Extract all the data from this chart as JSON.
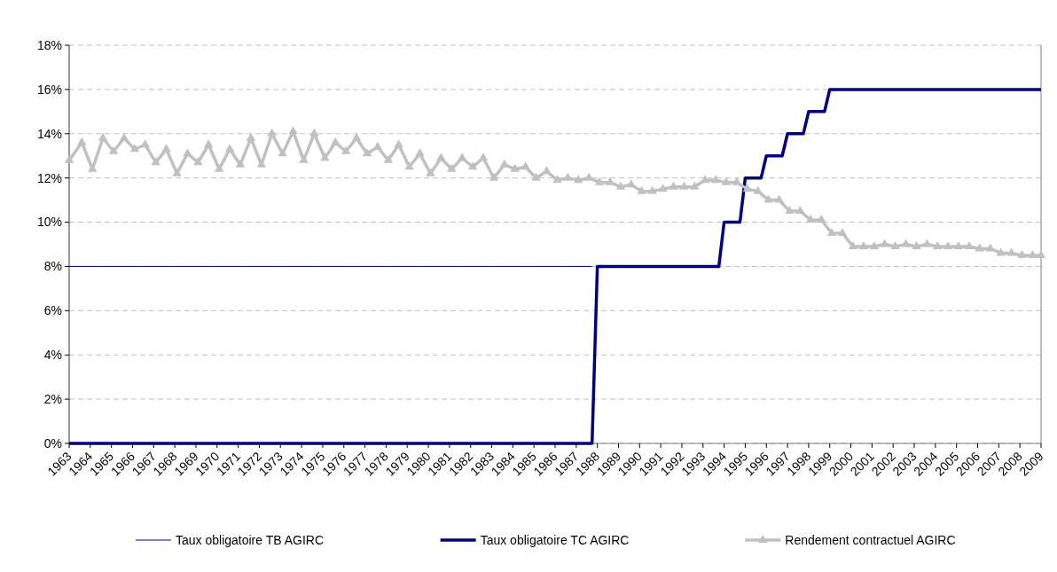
{
  "chart_data": {
    "type": "line",
    "xlim": [
      1963,
      2009
    ],
    "xticks": [
      {
        "value": 1963,
        "label": "1963"
      },
      {
        "value": 1964,
        "label": "1964"
      },
      {
        "value": 1965,
        "label": "1965"
      },
      {
        "value": 1966,
        "label": "1966"
      },
      {
        "value": 1967,
        "label": "1967"
      },
      {
        "value": 1968,
        "label": "1968"
      },
      {
        "value": 1969,
        "label": "1969"
      },
      {
        "value": 1970,
        "label": "1970"
      },
      {
        "value": 1971,
        "label": "1971"
      },
      {
        "value": 1972,
        "label": "1972"
      },
      {
        "value": 1973,
        "label": "1973"
      },
      {
        "value": 1974,
        "label": "1974"
      },
      {
        "value": 1975,
        "label": "1975"
      },
      {
        "value": 1976,
        "label": "1976"
      },
      {
        "value": 1977,
        "label": "1977"
      },
      {
        "value": 1978,
        "label": "1978"
      },
      {
        "value": 1979,
        "label": "1979"
      },
      {
        "value": 1980,
        "label": "1980"
      },
      {
        "value": 1981,
        "label": "1981"
      },
      {
        "value": 1982,
        "label": "1982"
      },
      {
        "value": 1983,
        "label": "1983"
      },
      {
        "value": 1984,
        "label": "1984"
      },
      {
        "value": 1985,
        "label": "1985"
      },
      {
        "value": 1986,
        "label": "1986"
      },
      {
        "value": 1987,
        "label": "1987"
      },
      {
        "value": 1988,
        "label": "1988"
      },
      {
        "value": 1989,
        "label": "1989"
      },
      {
        "value": 1990,
        "label": "1990"
      },
      {
        "value": 1991,
        "label": "1991"
      },
      {
        "value": 1992,
        "label": "1992"
      },
      {
        "value": 1993,
        "label": "1993"
      },
      {
        "value": 1994,
        "label": "1994"
      },
      {
        "value": 1995,
        "label": "1995"
      },
      {
        "value": 1996,
        "label": "1996"
      },
      {
        "value": 1997,
        "label": "1997"
      },
      {
        "value": 1998,
        "label": "1998"
      },
      {
        "value": 1999,
        "label": "1999"
      },
      {
        "value": 2000,
        "label": "2000"
      },
      {
        "value": 2001,
        "label": "2001"
      },
      {
        "value": 2002,
        "label": "2002"
      },
      {
        "value": 2003,
        "label": "2003"
      },
      {
        "value": 2004,
        "label": "2004"
      },
      {
        "value": 2005,
        "label": "2005"
      },
      {
        "value": 2006,
        "label": "2006"
      },
      {
        "value": 2007,
        "label": "2007"
      },
      {
        "value": 2008,
        "label": "2008"
      },
      {
        "value": 2009,
        "label": "2009"
      }
    ],
    "ylim": [
      0,
      18
    ],
    "yticks": [
      {
        "value": 0,
        "label": "0%"
      },
      {
        "value": 2,
        "label": "2%"
      },
      {
        "value": 4,
        "label": "4%"
      },
      {
        "value": 6,
        "label": "6%"
      },
      {
        "value": 8,
        "label": "8%"
      },
      {
        "value": 10,
        "label": "10%"
      },
      {
        "value": 12,
        "label": "12%"
      },
      {
        "value": 14,
        "label": "14%"
      },
      {
        "value": 16,
        "label": "16%"
      },
      {
        "value": 18,
        "label": "18%"
      }
    ],
    "grid": "y",
    "legend": "bottom",
    "series": [
      {
        "name": "Taux obligatoire TB AGIRC",
        "color": "#000080",
        "marker": "none",
        "x": [
          1963,
          1987.75
        ],
        "values": [
          8,
          8
        ]
      },
      {
        "name": "Taux obligatoire TC AGIRC",
        "color": "#000080",
        "marker": "none",
        "x": [
          1963,
          1987.75,
          1988,
          1993.75,
          1994,
          1994.75,
          1995,
          1995.75,
          1996,
          1996.75,
          1997,
          1997.75,
          1998,
          1998.75,
          1999,
          2009
        ],
        "values": [
          0,
          0,
          8,
          8,
          10,
          10,
          12,
          12,
          13,
          13,
          14,
          14,
          15,
          15,
          16,
          16
        ]
      },
      {
        "name": "Rendement contractuel AGIRC",
        "color": "#c0c0c0",
        "marker": "triangle",
        "x": [
          1963,
          1963.6,
          1964.1,
          1964.6,
          1965.1,
          1965.6,
          1966.1,
          1966.6,
          1967.1,
          1967.6,
          1968.1,
          1968.6,
          1969.1,
          1969.6,
          1970.1,
          1970.6,
          1971.1,
          1971.6,
          1972.1,
          1972.6,
          1973.1,
          1973.6,
          1974.1,
          1974.6,
          1975.1,
          1975.6,
          1976.1,
          1976.6,
          1977.1,
          1977.6,
          1978.1,
          1978.6,
          1979.1,
          1979.6,
          1980.1,
          1980.6,
          1981.1,
          1981.6,
          1982.1,
          1982.6,
          1983.1,
          1983.6,
          1984.1,
          1984.6,
          1985.1,
          1985.6,
          1986.1,
          1986.6,
          1987.1,
          1987.6,
          1988.1,
          1988.6,
          1989.1,
          1989.6,
          1990.1,
          1990.6,
          1991.1,
          1991.6,
          1992.1,
          1992.6,
          1993.1,
          1993.6,
          1994.1,
          1994.6,
          1995.1,
          1995.6,
          1996.1,
          1996.6,
          1997.1,
          1997.6,
          1998.1,
          1998.6,
          1999.1,
          1999.6,
          2000.1,
          2000.6,
          2001.1,
          2001.6,
          2002.1,
          2002.6,
          2003.1,
          2003.6,
          2004.1,
          2004.6,
          2005.1,
          2005.6,
          2006.1,
          2006.6,
          2007.1,
          2007.6,
          2008.1,
          2008.6,
          2009
        ],
        "values": [
          12.8,
          13.6,
          12.4,
          13.8,
          13.2,
          13.8,
          13.3,
          13.5,
          12.7,
          13.3,
          12.2,
          13.1,
          12.7,
          13.5,
          12.4,
          13.3,
          12.6,
          13.8,
          12.6,
          14.0,
          13.1,
          14.1,
          12.8,
          14.0,
          12.9,
          13.6,
          13.2,
          13.8,
          13.1,
          13.4,
          12.8,
          13.5,
          12.5,
          13.1,
          12.2,
          12.9,
          12.4,
          12.9,
          12.5,
          12.9,
          12.0,
          12.6,
          12.4,
          12.5,
          12.0,
          12.3,
          11.9,
          12.0,
          11.9,
          12.0,
          11.8,
          11.8,
          11.6,
          11.7,
          11.4,
          11.4,
          11.5,
          11.6,
          11.6,
          11.6,
          11.9,
          11.9,
          11.8,
          11.8,
          11.5,
          11.4,
          11.0,
          11.0,
          10.5,
          10.5,
          10.1,
          10.1,
          9.5,
          9.5,
          8.9,
          8.9,
          8.9,
          9.0,
          8.9,
          9.0,
          8.9,
          9.0,
          8.9,
          8.9,
          8.9,
          8.9,
          8.8,
          8.8,
          8.6,
          8.6,
          8.5,
          8.5,
          8.5
        ]
      }
    ]
  }
}
